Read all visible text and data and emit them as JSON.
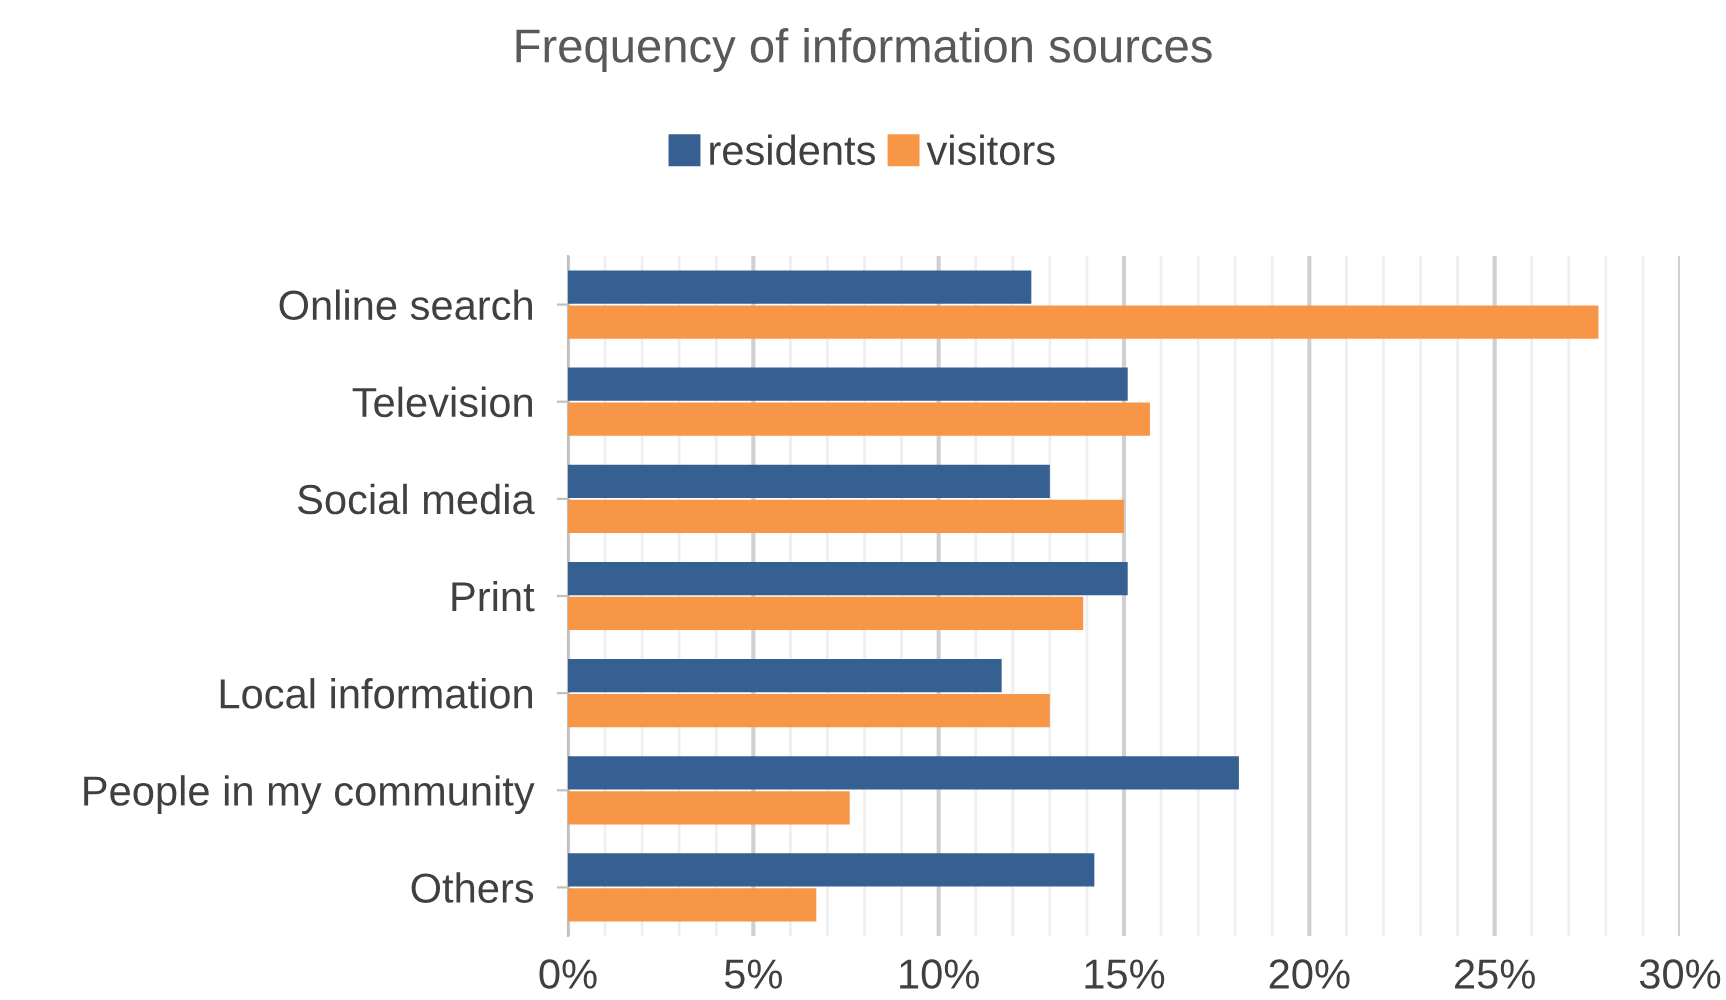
{
  "chart_data": {
    "type": "bar",
    "orientation": "horizontal",
    "title": "Frequency of information sources",
    "categories": [
      "Online search",
      "Television",
      "Social media",
      "Print",
      "Local information",
      "People in my community",
      "Others"
    ],
    "series": [
      {
        "name": "residents",
        "color": "#376092",
        "values": [
          12.5,
          15.1,
          13.0,
          15.1,
          11.7,
          18.1,
          14.2
        ]
      },
      {
        "name": "visitors",
        "color": "#f79646",
        "values": [
          27.8,
          15.7,
          15.0,
          13.9,
          13.0,
          7.6,
          6.7
        ]
      }
    ],
    "xlim": [
      0,
      30
    ],
    "xticks": [
      {
        "value": 0,
        "label": "0%"
      },
      {
        "value": 5,
        "label": "5%"
      },
      {
        "value": 10,
        "label": "10%"
      },
      {
        "value": 15,
        "label": "15%"
      },
      {
        "value": 20,
        "label": "20%"
      },
      {
        "value": 25,
        "label": "25%"
      },
      {
        "value": 30,
        "label": "30%"
      }
    ],
    "grid": "x",
    "legend": "top"
  }
}
